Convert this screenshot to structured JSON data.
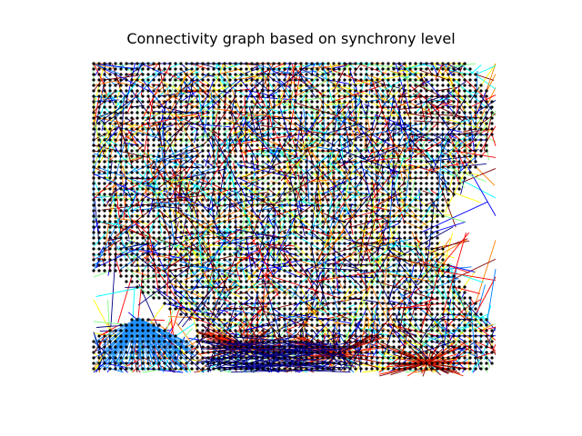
{
  "figure": {
    "title": "Connectivity graph based on synchrony level"
  },
  "graph": {
    "node_color": "#000000",
    "colormap": "jet",
    "colormap_stops": [
      "#00007f",
      "#0000ff",
      "#007fff",
      "#00ffff",
      "#7fff7f",
      "#ffff00",
      "#ff7f00",
      "#ff0000",
      "#7f0000"
    ],
    "background": "#ffffff"
  }
}
